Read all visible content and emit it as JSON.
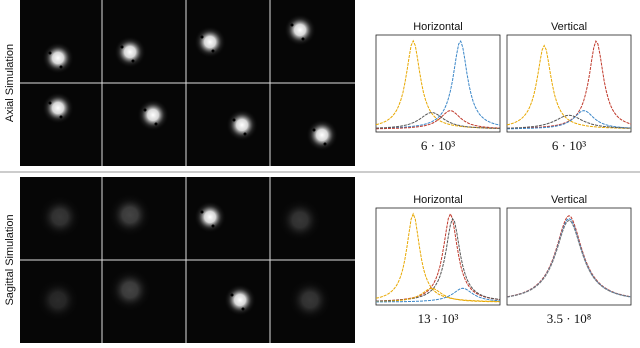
{
  "figure": {
    "rows": [
      {
        "label": "Axial Simulation",
        "plots": [
          {
            "title": "Horizontal",
            "caption": "6 · 10³"
          },
          {
            "title": "Vertical",
            "caption": "6 · 10³"
          }
        ]
      },
      {
        "label": "Sagittal Simulation",
        "plots": [
          {
            "title": "Horizontal",
            "caption": "13 · 10³"
          },
          {
            "title": "Vertical",
            "caption": "3.5 · 10⁸"
          }
        ]
      }
    ]
  }
}
